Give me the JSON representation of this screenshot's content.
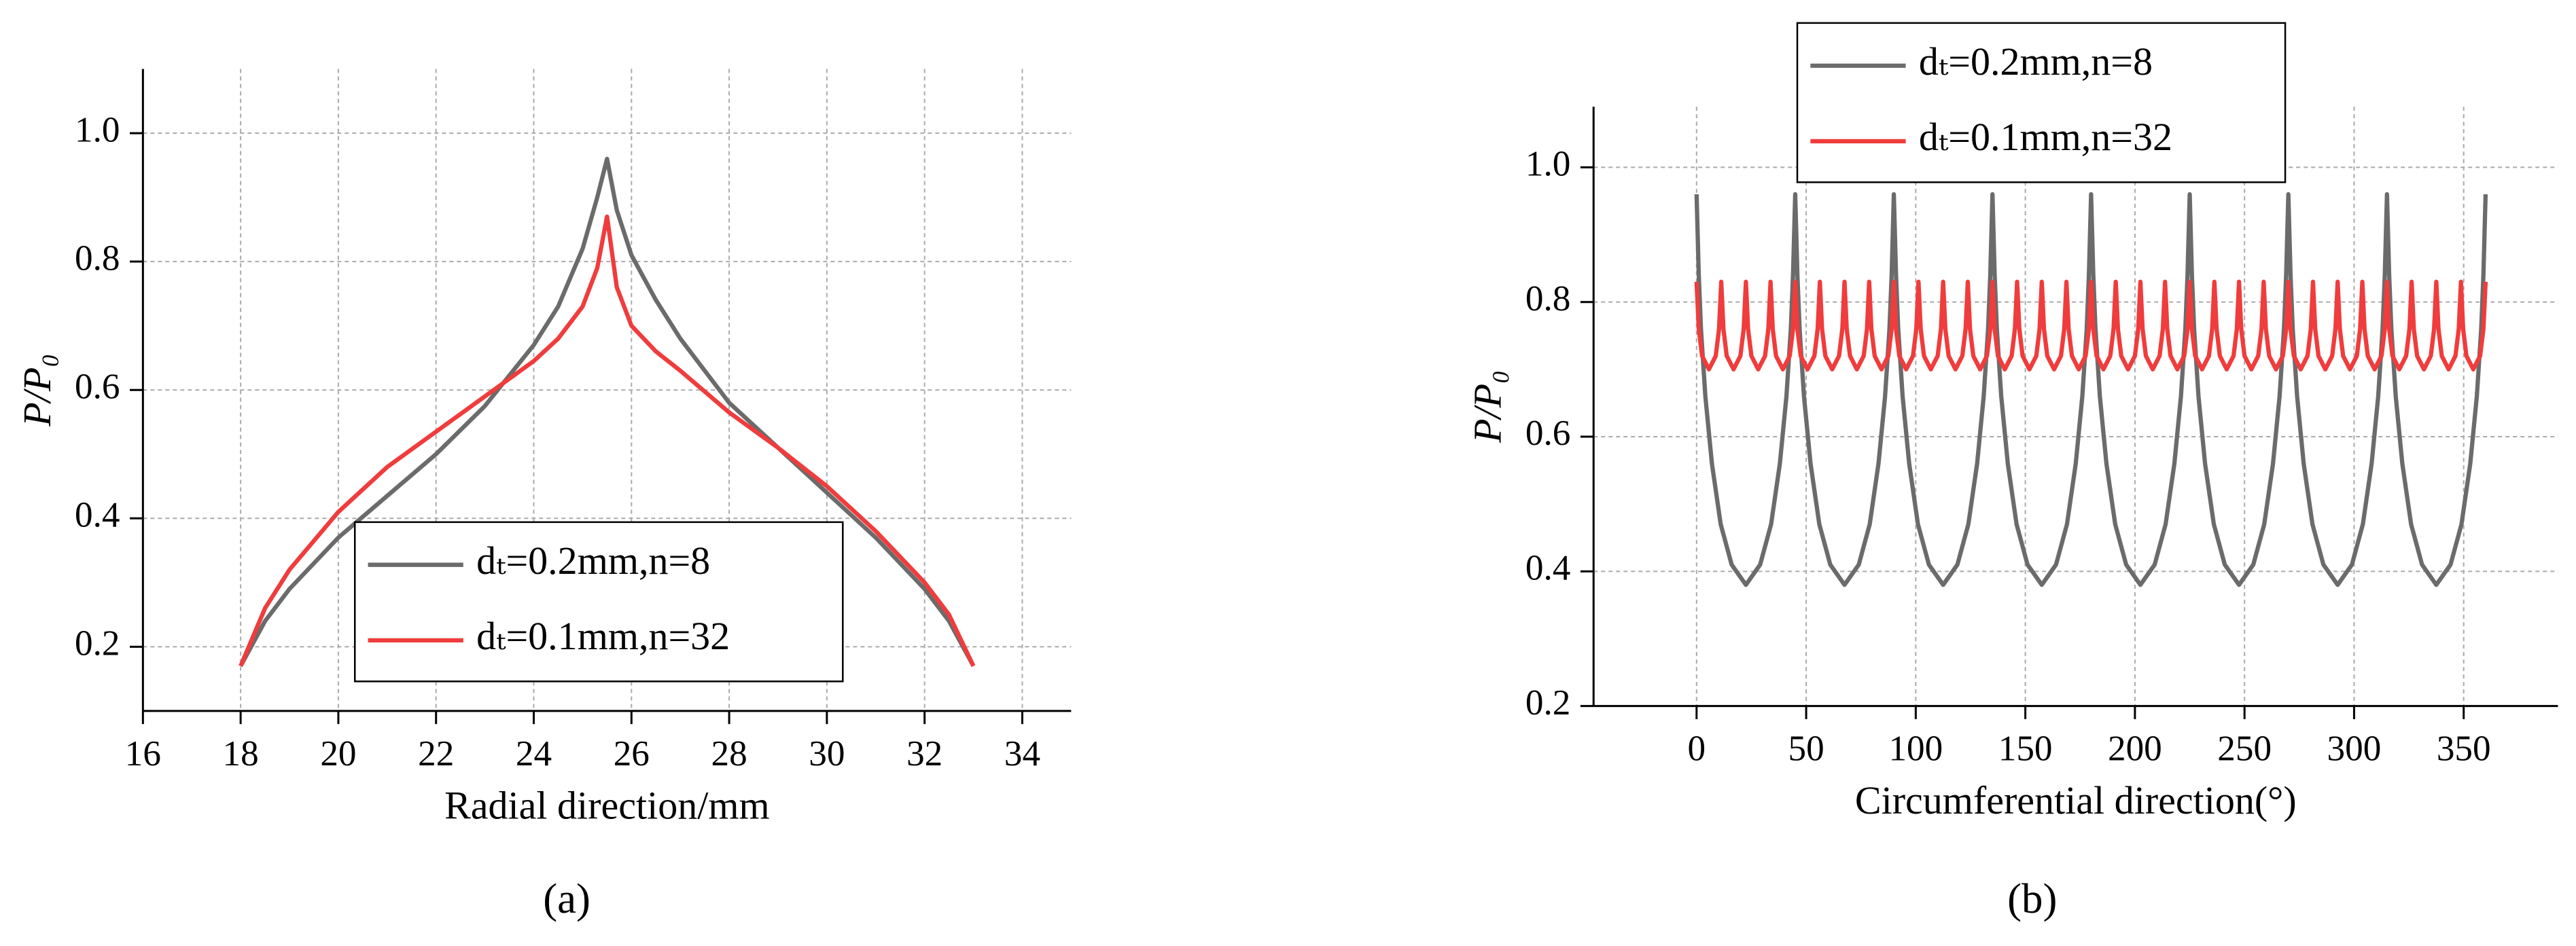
{
  "chart_data": [
    {
      "type": "line",
      "caption": "(a)",
      "xlabel": "Radial direction/mm",
      "ylabel": "P/P₀",
      "xlim": [
        16,
        35
      ],
      "xticks": [
        16,
        18,
        20,
        22,
        24,
        26,
        28,
        30,
        32,
        34
      ],
      "ylim": [
        0.1,
        1.1
      ],
      "yticks": [
        0.2,
        0.4,
        0.6,
        0.8,
        {
          "value": 1,
          "label": "1.0"
        }
      ],
      "grid": true,
      "legend": "lower center",
      "series": [
        {
          "name": "dₜ=0.2mm,n=8",
          "color": "#6b6b6b",
          "x": [
            18,
            18.5,
            19,
            20,
            21,
            22,
            23,
            24,
            24.5,
            25,
            25.3,
            25.5,
            25.7,
            26,
            26.5,
            27,
            28,
            29,
            30,
            31,
            32,
            32.5,
            33
          ],
          "values": [
            0.17,
            0.24,
            0.29,
            0.37,
            0.435,
            0.5,
            0.575,
            0.67,
            0.73,
            0.82,
            0.9,
            0.96,
            0.88,
            0.81,
            0.74,
            0.68,
            0.58,
            0.51,
            0.44,
            0.37,
            0.29,
            0.24,
            0.17
          ]
        },
        {
          "name": "dₜ=0.1mm,n=32",
          "color": "#f03c3c",
          "x": [
            18,
            18.5,
            19,
            20,
            21,
            22,
            23,
            24,
            24.5,
            25,
            25.3,
            25.5,
            25.7,
            26,
            26.5,
            27,
            28,
            29,
            30,
            31,
            32,
            32.5,
            33
          ],
          "values": [
            0.17,
            0.26,
            0.32,
            0.41,
            0.48,
            0.535,
            0.59,
            0.645,
            0.68,
            0.73,
            0.79,
            0.87,
            0.76,
            0.7,
            0.66,
            0.63,
            0.565,
            0.51,
            0.45,
            0.38,
            0.3,
            0.25,
            0.17
          ]
        }
      ]
    },
    {
      "type": "line",
      "caption": "(b)",
      "xlabel": "Circumferential direction(°)",
      "ylabel": "P/P₀",
      "xlim": [
        -47,
        393
      ],
      "xticks": [
        0,
        50,
        100,
        150,
        200,
        250,
        300,
        350
      ],
      "ylim": [
        0.2,
        1.09
      ],
      "yticks": [
        0.2,
        0.4,
        0.6,
        0.8,
        {
          "value": 1,
          "label": "1.0"
        }
      ],
      "grid": true,
      "legend": "upper center",
      "series": [
        {
          "name": "dₜ=0.2mm,n=8",
          "color": "#6b6b6b",
          "x": [
            0,
            1,
            2,
            4,
            7,
            11,
            16,
            22.5,
            29,
            34,
            38,
            41,
            43,
            44,
            45,
            46,
            47,
            49,
            52,
            56,
            61,
            67.5,
            74,
            79,
            83,
            86,
            88,
            89,
            90,
            91,
            92,
            94,
            97,
            101,
            106,
            112.5,
            119,
            124,
            128,
            131,
            133,
            134,
            135,
            136,
            137,
            139,
            142,
            146,
            151,
            157.5,
            164,
            169,
            173,
            176,
            178,
            179,
            180,
            181,
            182,
            184,
            187,
            191,
            196,
            202.5,
            209,
            214,
            218,
            221,
            223,
            224,
            225,
            226,
            227,
            229,
            232,
            236,
            241,
            247.5,
            254,
            259,
            263,
            266,
            268,
            269,
            270,
            271,
            272,
            274,
            277,
            281,
            286,
            292.5,
            299,
            304,
            308,
            311,
            313,
            314,
            315,
            316,
            317,
            319,
            322,
            326,
            331,
            337.5,
            344,
            349,
            353,
            356,
            358,
            359,
            360
          ],
          "values": [
            0.96,
            0.84,
            0.76,
            0.66,
            0.56,
            0.47,
            0.41,
            0.38,
            0.41,
            0.47,
            0.56,
            0.66,
            0.76,
            0.84,
            0.96,
            0.84,
            0.76,
            0.66,
            0.56,
            0.47,
            0.41,
            0.38,
            0.41,
            0.47,
            0.56,
            0.66,
            0.76,
            0.84,
            0.96,
            0.84,
            0.76,
            0.66,
            0.56,
            0.47,
            0.41,
            0.38,
            0.41,
            0.47,
            0.56,
            0.66,
            0.76,
            0.84,
            0.96,
            0.84,
            0.76,
            0.66,
            0.56,
            0.47,
            0.41,
            0.38,
            0.41,
            0.47,
            0.56,
            0.66,
            0.76,
            0.84,
            0.96,
            0.84,
            0.76,
            0.66,
            0.56,
            0.47,
            0.41,
            0.38,
            0.41,
            0.47,
            0.56,
            0.66,
            0.76,
            0.84,
            0.96,
            0.84,
            0.76,
            0.66,
            0.56,
            0.47,
            0.41,
            0.38,
            0.41,
            0.47,
            0.56,
            0.66,
            0.76,
            0.84,
            0.96,
            0.84,
            0.76,
            0.66,
            0.56,
            0.47,
            0.41,
            0.38,
            0.41,
            0.47,
            0.56,
            0.66,
            0.76,
            0.84,
            0.96,
            0.84,
            0.76,
            0.66,
            0.56,
            0.47,
            0.41,
            0.38,
            0.41,
            0.47,
            0.56,
            0.66,
            0.76,
            0.84,
            0.96
          ]
        },
        {
          "name": "dₜ=0.1mm,n=32",
          "color": "#f03c3c",
          "x": [
            0,
            1,
            2.5,
            5.625,
            8.75,
            10.25,
            11.25,
            12.25,
            13.75,
            16.875,
            20,
            21.5,
            22.5,
            23.5,
            25,
            28.125,
            31.25,
            32.75,
            33.75,
            34.75,
            36.25,
            39.375,
            42.5,
            44,
            45,
            46,
            47.5,
            50.625,
            53.75,
            55.25,
            56.25,
            57.25,
            58.75,
            61.875,
            65,
            66.5,
            67.5,
            68.5,
            70,
            73.125,
            76.25,
            77.75,
            78.75,
            79.75,
            81.25,
            84.375,
            87.5,
            89,
            90,
            91,
            92.5,
            95.625,
            98.75,
            100.25,
            101.25,
            102.25,
            103.75,
            106.875,
            110,
            111.5,
            112.5,
            113.5,
            115,
            118.125,
            121.25,
            122.75,
            123.75,
            124.75,
            126.25,
            129.375,
            132.5,
            134,
            135,
            136,
            137.5,
            140.625,
            143.75,
            145.25,
            146.25,
            147.25,
            148.75,
            151.875,
            155,
            156.5,
            157.5,
            158.5,
            160,
            163.125,
            166.25,
            167.75,
            168.75,
            169.75,
            171.25,
            174.375,
            177.5,
            179,
            180,
            181,
            182.5,
            185.625,
            188.75,
            190.25,
            191.25,
            192.25,
            193.75,
            196.875,
            200,
            201.5,
            202.5,
            203.5,
            205,
            208.125,
            211.25,
            212.75,
            213.75,
            214.75,
            216.25,
            219.375,
            222.5,
            224,
            225,
            226,
            227.5,
            230.625,
            233.75,
            235.25,
            236.25,
            237.25,
            238.75,
            241.875,
            245,
            246.5,
            247.5,
            248.5,
            250,
            253.125,
            256.25,
            257.75,
            258.75,
            259.75,
            261.25,
            264.375,
            267.5,
            269,
            270,
            271,
            272.5,
            275.625,
            278.75,
            280.25,
            281.25,
            282.25,
            283.75,
            286.875,
            290,
            291.5,
            292.5,
            293.5,
            295,
            298.125,
            301.25,
            302.75,
            303.75,
            304.75,
            306.25,
            309.375,
            312.5,
            314,
            315,
            316,
            317.5,
            320.625,
            323.75,
            325.25,
            326.25,
            327.25,
            328.75,
            331.875,
            335,
            336.5,
            337.5,
            338.5,
            340,
            343.125,
            346.25,
            347.75,
            348.75,
            349.75,
            351.25,
            354.375,
            357.5,
            359,
            360
          ],
          "values": [
            0.83,
            0.76,
            0.72,
            0.7,
            0.72,
            0.76,
            0.83,
            0.76,
            0.72,
            0.7,
            0.72,
            0.76,
            0.83,
            0.76,
            0.72,
            0.7,
            0.72,
            0.76,
            0.83,
            0.76,
            0.72,
            0.7,
            0.72,
            0.76,
            0.83,
            0.76,
            0.72,
            0.7,
            0.72,
            0.76,
            0.83,
            0.76,
            0.72,
            0.7,
            0.72,
            0.76,
            0.83,
            0.76,
            0.72,
            0.7,
            0.72,
            0.76,
            0.83,
            0.76,
            0.72,
            0.7,
            0.72,
            0.76,
            0.83,
            0.76,
            0.72,
            0.7,
            0.72,
            0.76,
            0.83,
            0.76,
            0.72,
            0.7,
            0.72,
            0.76,
            0.83,
            0.76,
            0.72,
            0.7,
            0.72,
            0.76,
            0.83,
            0.76,
            0.72,
            0.7,
            0.72,
            0.76,
            0.83,
            0.76,
            0.72,
            0.7,
            0.72,
            0.76,
            0.83,
            0.76,
            0.72,
            0.7,
            0.72,
            0.76,
            0.83,
            0.76,
            0.72,
            0.7,
            0.72,
            0.76,
            0.83,
            0.76,
            0.72,
            0.7,
            0.72,
            0.76,
            0.83,
            0.76,
            0.72,
            0.7,
            0.72,
            0.76,
            0.83,
            0.76,
            0.72,
            0.7,
            0.72,
            0.76,
            0.83,
            0.76,
            0.72,
            0.7,
            0.72,
            0.76,
            0.83,
            0.76,
            0.72,
            0.7,
            0.72,
            0.76,
            0.83,
            0.76,
            0.72,
            0.7,
            0.72,
            0.76,
            0.83,
            0.76,
            0.72,
            0.7,
            0.72,
            0.76,
            0.83,
            0.76,
            0.72,
            0.7,
            0.72,
            0.76,
            0.83,
            0.76,
            0.72,
            0.7,
            0.72,
            0.76,
            0.83,
            0.76,
            0.72,
            0.7,
            0.72,
            0.76,
            0.83,
            0.76,
            0.72,
            0.7,
            0.72,
            0.76,
            0.83,
            0.76,
            0.72,
            0.7,
            0.72,
            0.76,
            0.83,
            0.76,
            0.72,
            0.7,
            0.72,
            0.76,
            0.83,
            0.76,
            0.72,
            0.7,
            0.72,
            0.76,
            0.83,
            0.76,
            0.72,
            0.7,
            0.72,
            0.76,
            0.83,
            0.76,
            0.72,
            0.7,
            0.72,
            0.76,
            0.83,
            0.76,
            0.72,
            0.7,
            0.72,
            0.76,
            0.83
          ]
        }
      ]
    }
  ]
}
